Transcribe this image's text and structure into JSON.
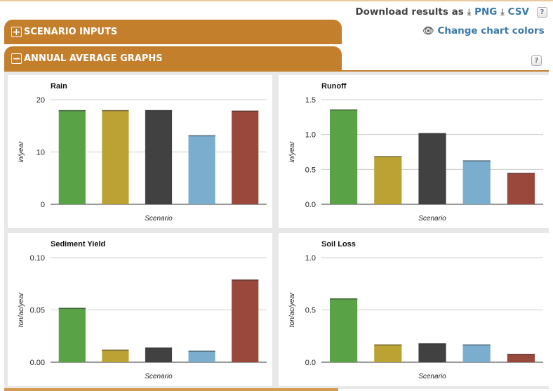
{
  "toolbar": {
    "download_label": "Download results as",
    "png_label": "PNG",
    "csv_label": "CSV",
    "change_colors_label": "Change chart colors",
    "help_glyph": "?"
  },
  "accordion": {
    "scenario_inputs": {
      "label": "SCENARIO INPUTS",
      "icon": "+"
    },
    "annual_graphs": {
      "label": "ANNUAL AVERAGE GRAPHS",
      "icon": "−"
    }
  },
  "colors": {
    "accent": "#c47f2c",
    "scenario_colors": [
      "#5aa246",
      "#bca232",
      "#414141",
      "#7aadce",
      "#9a483c"
    ]
  },
  "chart_data": [
    {
      "type": "bar",
      "title": "Rain",
      "xlabel": "Scenario",
      "ylabel": "in/year",
      "ylim": [
        0,
        20
      ],
      "yticks": [
        0,
        10,
        20
      ],
      "ytick_labels": [
        "0",
        "10",
        "20"
      ],
      "values": [
        18,
        18,
        18,
        13.2,
        17.9
      ],
      "grid": true,
      "legend": "none"
    },
    {
      "type": "bar",
      "title": "Runoff",
      "xlabel": "Scenario",
      "ylabel": "in/year",
      "ylim": [
        0,
        1.5
      ],
      "yticks": [
        0,
        0.5,
        1.0,
        1.5
      ],
      "ytick_labels": [
        "0.0",
        "0.5",
        "1.0",
        "1.5"
      ],
      "values": [
        1.36,
        0.69,
        1.02,
        0.63,
        0.45
      ],
      "grid": true,
      "legend": "none"
    },
    {
      "type": "bar",
      "title": "Sediment Yield",
      "xlabel": "Scenario",
      "ylabel": "ton/ac/year",
      "ylim": [
        0,
        0.1
      ],
      "yticks": [
        0,
        0.05,
        0.1
      ],
      "ytick_labels": [
        "0.00",
        "0.05",
        "0.10"
      ],
      "values": [
        0.052,
        0.012,
        0.014,
        0.011,
        0.079
      ],
      "grid": true,
      "legend": "none"
    },
    {
      "type": "bar",
      "title": "Soil Loss",
      "xlabel": "Scenario",
      "ylabel": "ton/ac/year",
      "ylim": [
        0,
        1.0
      ],
      "yticks": [
        0,
        0.5,
        1.0
      ],
      "ytick_labels": [
        "0.0",
        "0.5",
        "1.0"
      ],
      "values": [
        0.61,
        0.17,
        0.18,
        0.17,
        0.08
      ],
      "grid": true,
      "legend": "none"
    }
  ]
}
